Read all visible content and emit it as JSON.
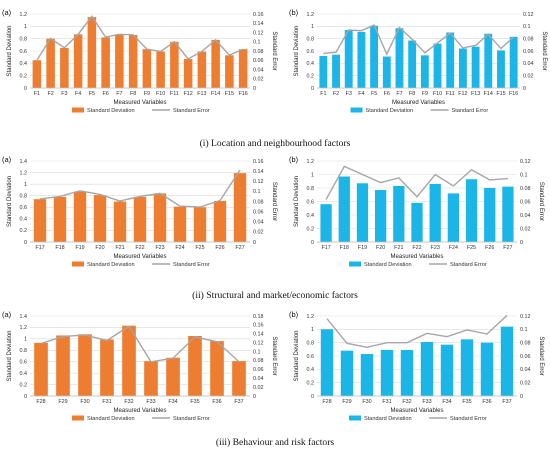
{
  "colors": {
    "orange": "#ED7D31",
    "blue": "#1CB5E8",
    "line": "#A6A6A6",
    "grid": "#D9D9D9",
    "axis": "#BFBFBF"
  },
  "captions": [
    "(i) Location and neighbourhood factors",
    "(ii) Structural and market/economic factors",
    "(iii) Behaviour and risk factors"
  ],
  "chart_data": [
    {
      "panel": "(a)",
      "type": "bar",
      "bar_color": "orange",
      "categories": [
        "F1",
        "F2",
        "F3",
        "F4",
        "F5",
        "F6",
        "F7",
        "F8",
        "F9",
        "F10",
        "F11",
        "F12",
        "F13",
        "F14",
        "F15",
        "F16"
      ],
      "xlabel": "Measured Variables",
      "ylabel": "Standard Deviation",
      "ylim": [
        0,
        1.2
      ],
      "yticks": [
        "0",
        "0.2",
        "0.4",
        "0.6",
        "0.8",
        "1",
        "1.2"
      ],
      "y2label": "Standard Error",
      "y2lim": [
        0,
        0.16
      ],
      "y2ticks": [
        "0",
        "0.02",
        "0.04",
        "0.06",
        "0.08",
        "0.1",
        "0.12",
        "0.14",
        "0.16"
      ],
      "series": [
        {
          "name": "Standard Deviation",
          "axis": "left",
          "kind": "bar",
          "values": [
            0.45,
            0.8,
            0.65,
            0.87,
            1.15,
            0.82,
            0.87,
            0.86,
            0.63,
            0.59,
            0.75,
            0.47,
            0.59,
            0.78,
            0.53,
            0.63
          ]
        },
        {
          "name": "Standard Error",
          "axis": "right",
          "kind": "line",
          "values": [
            0.06,
            0.107,
            0.087,
            0.116,
            0.155,
            0.11,
            0.116,
            0.115,
            0.084,
            0.079,
            0.1,
            0.063,
            0.079,
            0.104,
            0.071,
            0.084
          ]
        }
      ],
      "legend": "bottom"
    },
    {
      "panel": "(b)",
      "type": "bar",
      "bar_color": "blue",
      "categories": [
        "F1",
        "F2",
        "F3",
        "F4",
        "F5",
        "F6",
        "F7",
        "F8",
        "F9",
        "F10",
        "F11",
        "F12",
        "F13",
        "F14",
        "F15",
        "F16"
      ],
      "xlabel": "Measured Variables",
      "ylabel": "Standard Deviation",
      "ylim": [
        0,
        1.2
      ],
      "yticks": [
        "0",
        "0.2",
        "0.4",
        "0.6",
        "0.8",
        "1",
        "1.2"
      ],
      "y2label": "Standard Error",
      "y2lim": [
        0,
        0.12
      ],
      "y2ticks": [
        "0",
        "0.02",
        "0.04",
        "0.06",
        "0.08",
        "0.1",
        "0.12"
      ],
      "series": [
        {
          "name": "Standard Deviation",
          "axis": "left",
          "kind": "bar",
          "values": [
            0.52,
            0.54,
            0.94,
            0.91,
            1.01,
            0.51,
            0.97,
            0.77,
            0.53,
            0.72,
            0.9,
            0.64,
            0.67,
            0.88,
            0.61,
            0.83
          ]
        },
        {
          "name": "Standard Error",
          "axis": "right",
          "kind": "line",
          "values": [
            0.056,
            0.058,
            0.094,
            0.093,
            0.102,
            0.055,
            0.098,
            0.079,
            0.057,
            0.073,
            0.089,
            0.065,
            0.069,
            0.087,
            0.064,
            0.083
          ]
        }
      ],
      "legend": "bottom"
    },
    {
      "panel": "(a)",
      "type": "bar",
      "bar_color": "orange",
      "categories": [
        "F17",
        "F18",
        "F19",
        "F20",
        "F21",
        "F22",
        "F23",
        "F24",
        "F25",
        "F26",
        "F27"
      ],
      "xlabel": "Measured Variables",
      "ylabel": "Standard Deviation",
      "ylim": [
        0,
        1.4
      ],
      "yticks": [
        "0",
        "0.2",
        "0.4",
        "0.6",
        "0.8",
        "1",
        "1.2",
        "1.4"
      ],
      "y2label": "Standard Error",
      "y2lim": [
        0,
        0.16
      ],
      "y2ticks": [
        "0",
        "0.02",
        "0.04",
        "0.06",
        "0.08",
        "0.1",
        "0.12",
        "0.14",
        "0.16"
      ],
      "series": [
        {
          "name": "Standard Deviation",
          "axis": "left",
          "kind": "bar",
          "values": [
            0.74,
            0.78,
            0.87,
            0.81,
            0.7,
            0.78,
            0.84,
            0.61,
            0.6,
            0.71,
            1.19
          ]
        },
        {
          "name": "Standard Error",
          "axis": "right",
          "kind": "line",
          "values": [
            0.085,
            0.09,
            0.101,
            0.094,
            0.081,
            0.09,
            0.096,
            0.071,
            0.069,
            0.082,
            0.142
          ]
        }
      ],
      "legend": "bottom"
    },
    {
      "panel": "(b)",
      "type": "bar",
      "bar_color": "blue",
      "categories": [
        "F17",
        "F18",
        "F19",
        "F20",
        "F21",
        "F22",
        "F23",
        "F24",
        "F25",
        "F26",
        "F27"
      ],
      "xlabel": "Measured Variables",
      "ylabel": "Standard Deviation",
      "ylim": [
        0,
        1.2
      ],
      "yticks": [
        "0",
        "0.2",
        "0.4",
        "0.6",
        "0.8",
        "1",
        "1.2"
      ],
      "y2label": "Standard Error",
      "y2lim": [
        0,
        0.12
      ],
      "y2ticks": [
        "0",
        "0.02",
        "0.04",
        "0.06",
        "0.08",
        "0.1",
        "0.12"
      ],
      "series": [
        {
          "name": "Standard Deviation",
          "axis": "left",
          "kind": "bar",
          "values": [
            0.56,
            0.97,
            0.87,
            0.77,
            0.83,
            0.58,
            0.86,
            0.72,
            0.93,
            0.8,
            0.82
          ]
        },
        {
          "name": "Standard Error",
          "axis": "right",
          "kind": "line",
          "values": [
            0.063,
            0.112,
            0.1,
            0.088,
            0.095,
            0.067,
            0.1,
            0.083,
            0.107,
            0.092,
            0.094
          ]
        }
      ],
      "legend": "bottom"
    },
    {
      "panel": "(a)",
      "type": "bar",
      "bar_color": "orange",
      "categories": [
        "F28",
        "F29",
        "F30",
        "F31",
        "F32",
        "F33",
        "F34",
        "F35",
        "F36",
        "F37"
      ],
      "xlabel": "Measured Variables",
      "ylabel": "Standard Deviation",
      "ylim": [
        0,
        1.4
      ],
      "yticks": [
        "0",
        "0.2",
        "0.4",
        "0.6",
        "0.8",
        "1",
        "1.2",
        "1.4"
      ],
      "y2label": "Standard Error",
      "y2lim": [
        0,
        0.18
      ],
      "y2ticks": [
        "0",
        "0.02",
        "0.04",
        "0.06",
        "0.08",
        "0.1",
        "0.12",
        "0.14",
        "0.16",
        "0.18"
      ],
      "series": [
        {
          "name": "Standard Deviation",
          "axis": "left",
          "kind": "bar",
          "values": [
            0.93,
            1.06,
            1.08,
            0.99,
            1.23,
            0.61,
            0.67,
            1.05,
            0.96,
            0.61
          ]
        },
        {
          "name": "Standard Error",
          "axis": "right",
          "kind": "line",
          "values": [
            0.118,
            0.134,
            0.137,
            0.125,
            0.157,
            0.077,
            0.085,
            0.133,
            0.122,
            0.077
          ]
        }
      ],
      "legend": "bottom"
    },
    {
      "panel": "(b)",
      "type": "bar",
      "bar_color": "blue",
      "categories": [
        "F28",
        "F29",
        "F30",
        "F31",
        "F32",
        "F33",
        "F34",
        "F35",
        "F36",
        "F37"
      ],
      "xlabel": "Measured Variables",
      "ylabel": "Standard Deviation",
      "ylim": [
        0,
        1.2
      ],
      "yticks": [
        "0",
        "0.2",
        "0.4",
        "0.6",
        "0.8",
        "1",
        "1.2"
      ],
      "y2label": "Standard Error",
      "y2lim": [
        0,
        0.12
      ],
      "y2ticks": [
        "0",
        "0.02",
        "0.04",
        "0.06",
        "0.08",
        "0.1",
        "0.12"
      ],
      "series": [
        {
          "name": "Standard Deviation",
          "axis": "left",
          "kind": "bar",
          "values": [
            1.0,
            0.68,
            0.63,
            0.69,
            0.69,
            0.81,
            0.77,
            0.85,
            0.8,
            1.04
          ]
        },
        {
          "name": "Standard Error",
          "axis": "right",
          "kind": "line",
          "values": [
            0.116,
            0.079,
            0.073,
            0.08,
            0.08,
            0.094,
            0.089,
            0.099,
            0.093,
            0.121
          ]
        }
      ],
      "legend": "bottom"
    }
  ]
}
